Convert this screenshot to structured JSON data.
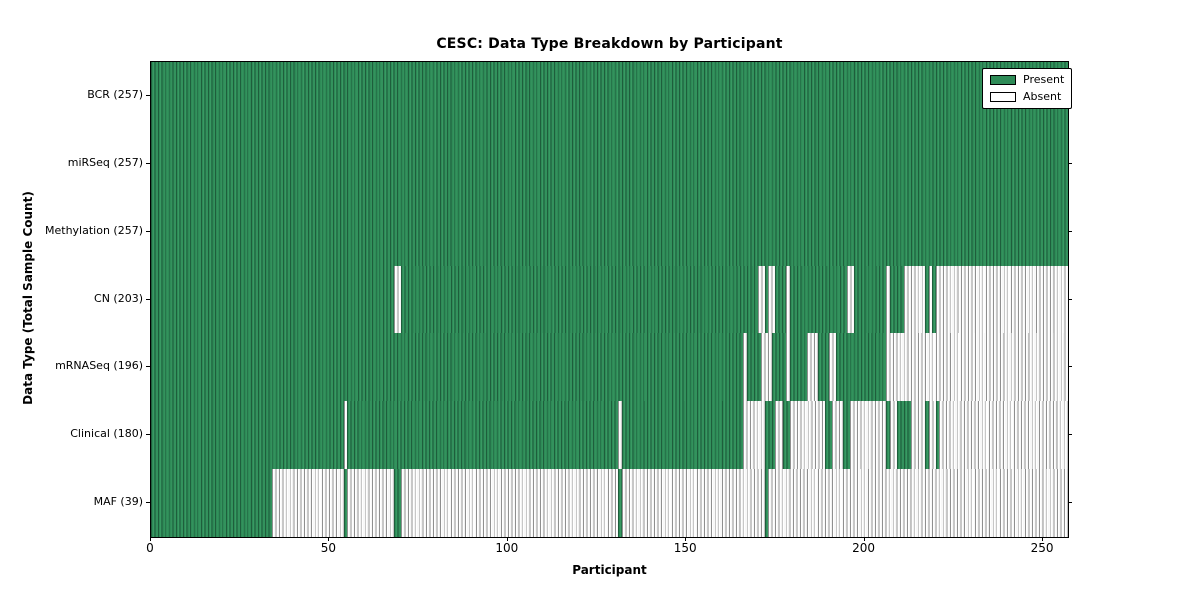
{
  "chart_data": {
    "type": "heatmap",
    "title": "CESC: Data Type Breakdown by Participant",
    "xlabel": "Participant",
    "ylabel": "Data Type (Total Sample Count)",
    "n_participants": 257,
    "x_range": [
      0,
      257
    ],
    "x_ticks": [
      0,
      50,
      100,
      150,
      200,
      250
    ],
    "grid": false,
    "legend_position": "upper right",
    "legend": [
      {
        "label": "Present",
        "color": "#2e8b57"
      },
      {
        "label": "Absent",
        "color": "#ffffff"
      }
    ],
    "colors": {
      "present_fill": "#2e8b57",
      "present_edge": "#1e5e3c",
      "absent_fill": "#ffffff",
      "absent_edge": "#8f8f8f",
      "plot_border": "#000000"
    },
    "rows": [
      {
        "name": "BCR",
        "label": "BCR (257)",
        "total": 257,
        "absent_ranges": []
      },
      {
        "name": "miRSeq",
        "label": "miRSeq (257)",
        "total": 257,
        "absent_ranges": []
      },
      {
        "name": "Methylation",
        "label": "Methylation (257)",
        "total": 257,
        "absent_ranges": []
      },
      {
        "name": "CN",
        "label": "CN (203)",
        "total": 203,
        "absent_ranges": [
          [
            68,
            69
          ],
          [
            170,
            171
          ],
          [
            173,
            174
          ],
          [
            178,
            178
          ],
          [
            195,
            196
          ],
          [
            206,
            206
          ],
          [
            211,
            216
          ],
          [
            218,
            218
          ],
          [
            220,
            256
          ]
        ]
      },
      {
        "name": "mRNASeq",
        "label": "mRNASeq (196)",
        "total": 196,
        "absent_ranges": [
          [
            166,
            166
          ],
          [
            171,
            173
          ],
          [
            178,
            178
          ],
          [
            184,
            186
          ],
          [
            190,
            191
          ],
          [
            206,
            256
          ]
        ]
      },
      {
        "name": "Clinical",
        "label": "Clinical (180)",
        "total": 180,
        "absent_ranges": [
          [
            54,
            54
          ],
          [
            131,
            131
          ],
          [
            166,
            171
          ],
          [
            175,
            176
          ],
          [
            179,
            188
          ],
          [
            191,
            193
          ],
          [
            196,
            205
          ],
          [
            207,
            208
          ],
          [
            213,
            216
          ],
          [
            218,
            219
          ],
          [
            221,
            256
          ]
        ]
      },
      {
        "name": "MAF",
        "label": "MAF (39)",
        "total": 39,
        "absent_ranges": [
          [
            34,
            53
          ],
          [
            55,
            67
          ],
          [
            70,
            130
          ],
          [
            132,
            171
          ],
          [
            173,
            256
          ]
        ]
      }
    ]
  }
}
